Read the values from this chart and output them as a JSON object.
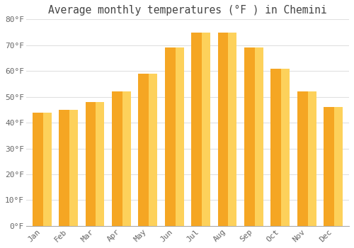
{
  "title": "Average monthly temperatures (°F ) in Chemini",
  "months": [
    "Jan",
    "Feb",
    "Mar",
    "Apr",
    "May",
    "Jun",
    "Jul",
    "Aug",
    "Sep",
    "Oct",
    "Nov",
    "Dec"
  ],
  "values": [
    44,
    45,
    48,
    52,
    59,
    69,
    75,
    75,
    69,
    61,
    52,
    46
  ],
  "bar_color_left": "#F5A623",
  "bar_color_right": "#FFD966",
  "ylim": [
    0,
    80
  ],
  "yticks": [
    0,
    10,
    20,
    30,
    40,
    50,
    60,
    70,
    80
  ],
  "ytick_labels": [
    "0°F",
    "10°F",
    "20°F",
    "30°F",
    "40°F",
    "50°F",
    "60°F",
    "70°F",
    "80°F"
  ],
  "background_color": "#FFFFFF",
  "plot_bg_color": "#FFFFFF",
  "grid_color": "#E0E0E0",
  "title_fontsize": 10.5,
  "tick_fontsize": 8,
  "title_color": "#444444",
  "tick_color": "#666666"
}
